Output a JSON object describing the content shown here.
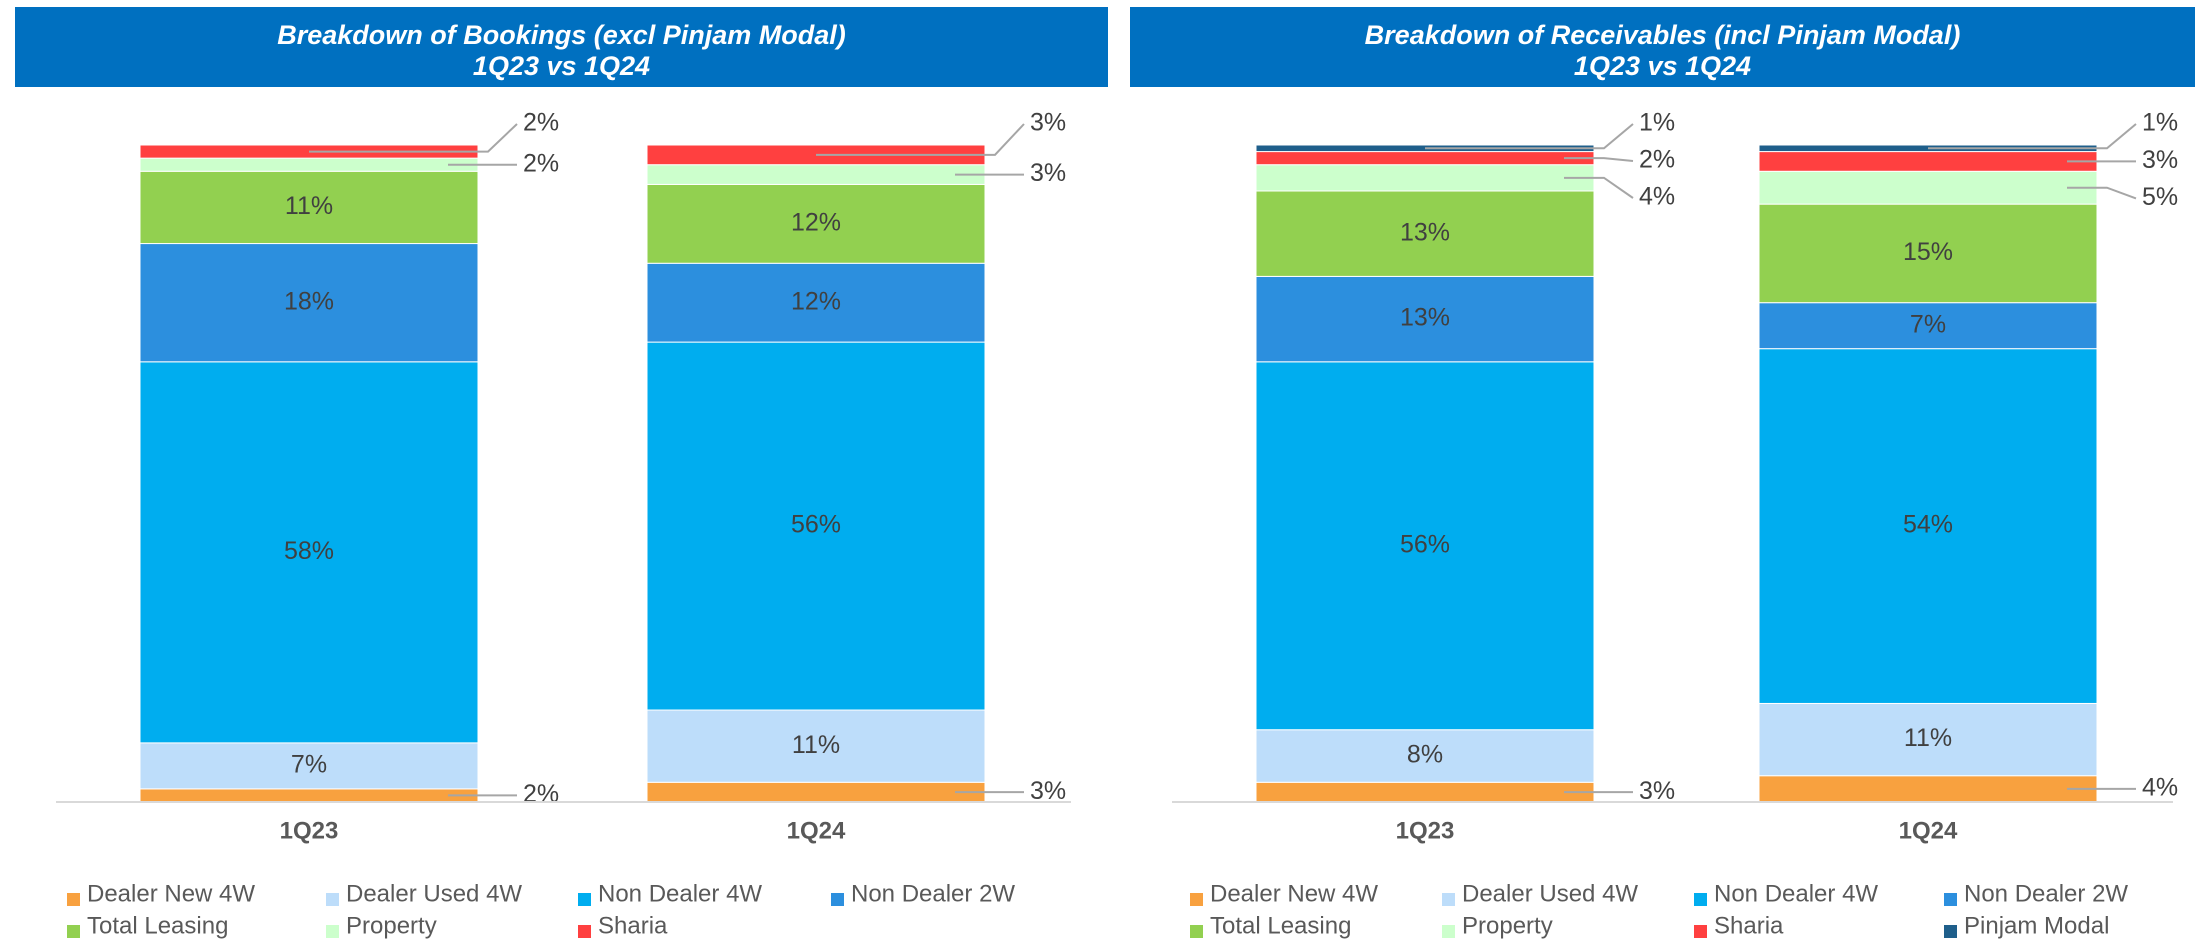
{
  "chart_data": [
    {
      "type": "stacked_bar",
      "title": "Breakdown of Bookings (excl Pinjam Modal)",
      "subtitle": "1Q23 vs 1Q24",
      "categories": [
        "1Q23",
        "1Q24"
      ],
      "series": [
        {
          "name": "Dealer New 4W",
          "color": "#f8a13f",
          "values": [
            2,
            3
          ],
          "value_labels": [
            "2%",
            "3%"
          ]
        },
        {
          "name": "Dealer Used 4W",
          "color": "#bdddfa",
          "values": [
            7,
            11
          ],
          "value_labels": [
            "7%",
            "11%"
          ]
        },
        {
          "name": "Non Dealer 4W",
          "color": "#00adef",
          "values": [
            58,
            56
          ],
          "value_labels": [
            "58%",
            "56%"
          ]
        },
        {
          "name": "Non Dealer 2W",
          "color": "#2c8fde",
          "values": [
            18,
            12
          ],
          "value_labels": [
            "18%",
            "12%"
          ]
        },
        {
          "name": "Total Leasing",
          "color": "#92d050",
          "values": [
            11,
            12
          ],
          "value_labels": [
            "11%",
            "12%"
          ]
        },
        {
          "name": "Property",
          "color": "#ccffcc",
          "values": [
            2,
            3
          ],
          "value_labels": [
            "2%",
            "3%"
          ]
        },
        {
          "name": "Sharia",
          "color": "#ff4040",
          "values": [
            2,
            3
          ],
          "value_labels": [
            "2%",
            "3%"
          ]
        }
      ]
    },
    {
      "type": "stacked_bar",
      "title": "Breakdown of Receivables (incl Pinjam Modal)",
      "subtitle": "1Q23 vs 1Q24",
      "categories": [
        "1Q23",
        "1Q24"
      ],
      "series": [
        {
          "name": "Dealer New 4W",
          "color": "#f8a13f",
          "values": [
            3,
            4
          ],
          "value_labels": [
            "3%",
            "4%"
          ]
        },
        {
          "name": "Dealer Used 4W",
          "color": "#bdddfa",
          "values": [
            8,
            11
          ],
          "value_labels": [
            "8%",
            "11%"
          ]
        },
        {
          "name": "Non Dealer 4W",
          "color": "#00adef",
          "values": [
            56,
            54
          ],
          "value_labels": [
            "56%",
            "54%"
          ]
        },
        {
          "name": "Non Dealer 2W",
          "color": "#2c8fde",
          "values": [
            13,
            7
          ],
          "value_labels": [
            "13%",
            "7%"
          ]
        },
        {
          "name": "Total Leasing",
          "color": "#92d050",
          "values": [
            13,
            15
          ],
          "value_labels": [
            "13%",
            "15%"
          ]
        },
        {
          "name": "Property",
          "color": "#ccffcc",
          "values": [
            4,
            5
          ],
          "value_labels": [
            "4%",
            "5%"
          ]
        },
        {
          "name": "Sharia",
          "color": "#ff4040",
          "values": [
            2,
            3
          ],
          "value_labels": [
            "2%",
            "3%"
          ]
        },
        {
          "name": "Pinjam Modal",
          "color": "#1f5f8b",
          "values": [
            1,
            1
          ],
          "value_labels": [
            "1%",
            "1%"
          ]
        }
      ]
    }
  ]
}
